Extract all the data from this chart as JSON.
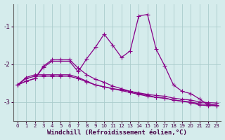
{
  "x": [
    0,
    1,
    2,
    3,
    4,
    5,
    6,
    7,
    8,
    9,
    10,
    11,
    12,
    13,
    14,
    15,
    16,
    17,
    18,
    19,
    20,
    21,
    22,
    23
  ],
  "line1": [
    -2.55,
    -2.35,
    -2.28,
    -2.28,
    -2.28,
    -2.28,
    -2.28,
    -2.35,
    -2.45,
    -2.55,
    -2.6,
    -2.65,
    -2.7,
    -2.75,
    -2.8,
    -2.85,
    -2.88,
    -2.9,
    -2.95,
    -2.98,
    -3.0,
    -3.05,
    -3.07,
    -3.08
  ],
  "line2": [
    -2.55,
    -2.38,
    -2.32,
    -2.32,
    -2.32,
    -2.32,
    -2.32,
    -2.38,
    -2.47,
    -2.55,
    -2.6,
    -2.65,
    -2.68,
    -2.72,
    -2.76,
    -2.8,
    -2.83,
    -2.85,
    -2.9,
    -2.93,
    -2.95,
    -3.0,
    -3.02,
    -3.03
  ],
  "line3": [
    -2.55,
    -2.45,
    -2.38,
    -2.05,
    -1.88,
    -1.88,
    -1.88,
    -2.1,
    -2.28,
    -2.4,
    -2.48,
    -2.58,
    -2.65,
    -2.72,
    -2.78,
    -2.82,
    -2.88,
    -2.9,
    -2.95,
    -2.98,
    -3.02,
    -3.08,
    -3.1,
    -3.1
  ],
  "line4": [
    -2.55,
    -2.45,
    -2.38,
    -2.08,
    -1.92,
    -1.92,
    -1.92,
    -2.2,
    -1.85,
    -1.55,
    -1.2,
    -1.5,
    -1.82,
    -1.65,
    -0.72,
    -0.68,
    -1.6,
    -2.05,
    -2.55,
    -2.72,
    -2.78,
    -2.92,
    -3.08,
    -3.1
  ],
  "bg_color": "#d5ecec",
  "grid_color": "#aacccc",
  "line_color": "#880088",
  "marker": "+",
  "markersize": 4,
  "linewidth": 0.9,
  "xlabel": "Windchill (Refroidissement éolien,°C)",
  "yticks": [
    -3,
    -2,
    -1
  ],
  "xlim": [
    -0.5,
    23.5
  ],
  "ylim": [
    -3.5,
    -0.4
  ],
  "title": ""
}
